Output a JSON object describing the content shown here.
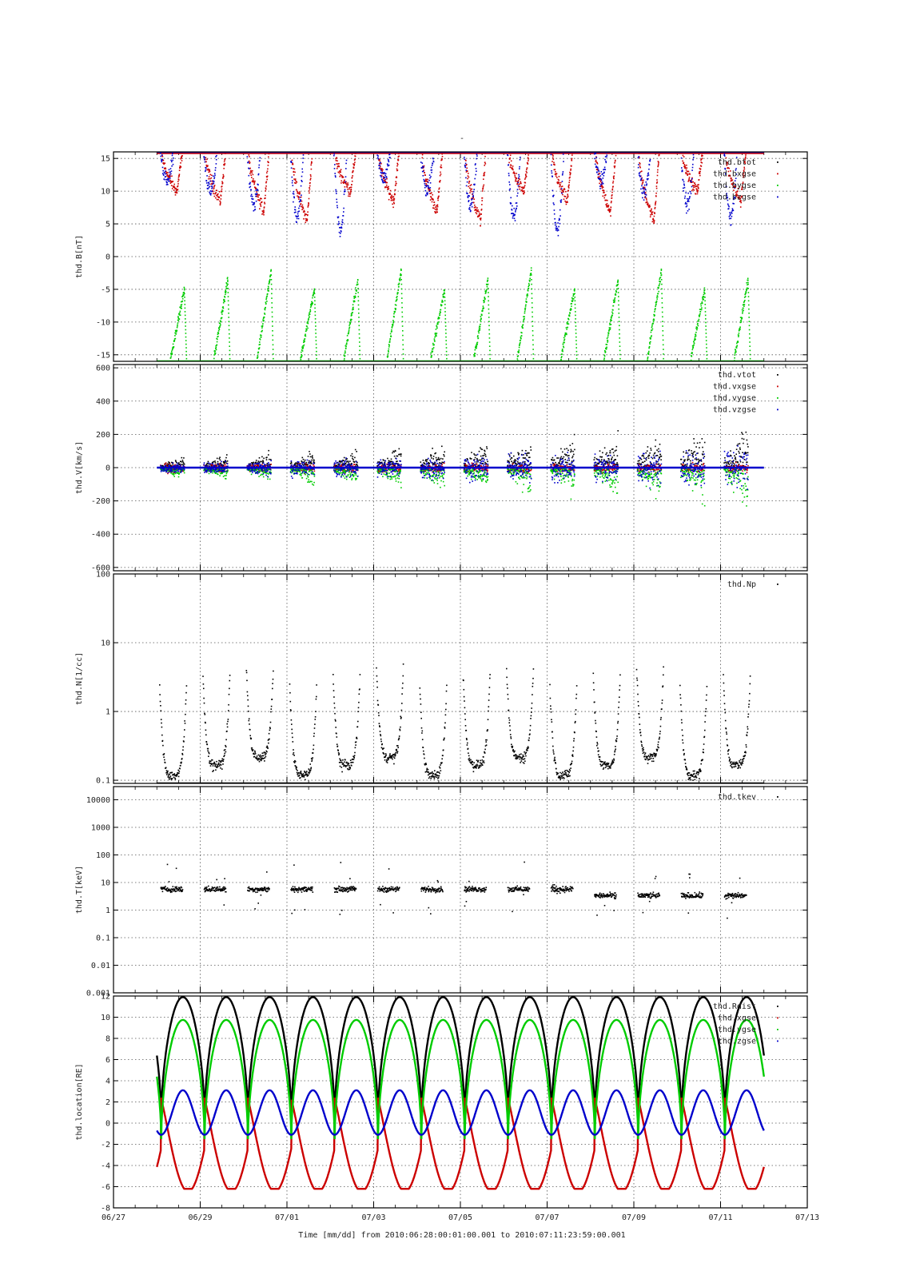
{
  "figure": {
    "title": "-",
    "time_range_label": "Time [mm/dd]  from 2010:06:28:00:01:00.001  to  2010:07:11:23:59:00.001"
  },
  "x_axis": {
    "ticks": [
      "06/27",
      "06/29",
      "07/01",
      "07/03",
      "07/05",
      "07/07",
      "07/09",
      "07/11",
      "07/13"
    ],
    "range_days": [
      0,
      16
    ],
    "data_start_day": 1.0,
    "data_end_day": 15.0,
    "grid": true
  },
  "chart_data": [
    {
      "type": "scatter",
      "ylabel": "thd.B[nT]",
      "scale": "linear",
      "ylim": [
        -16,
        16
      ],
      "yticks": [
        15,
        10,
        5,
        0,
        -5,
        -10,
        -15
      ],
      "yticklabels": [
        "15",
        "10",
        "5",
        "0",
        "-5",
        "-10",
        "-15"
      ],
      "grid": true,
      "legend_position": "top-right",
      "series": [
        {
          "name": "thd.btot",
          "color": "#000000"
        },
        {
          "name": "thd.bxgse",
          "color": "#cc0000"
        },
        {
          "name": "thd.bygse",
          "color": "#00cc00"
        },
        {
          "name": "thd.bzgse",
          "color": "#0000cc"
        }
      ]
    },
    {
      "type": "scatter",
      "ylabel": "thd.V[km/s]",
      "scale": "linear",
      "ylim": [
        -620,
        620
      ],
      "yticks": [
        600,
        400,
        200,
        0,
        -200,
        -400,
        -600
      ],
      "yticklabels": [
        "600",
        "400",
        "200",
        "0",
        "-200",
        "-400",
        "-600"
      ],
      "grid": true,
      "legend_position": "top-right",
      "series": [
        {
          "name": "thd.vtot",
          "color": "#000000"
        },
        {
          "name": "thd.vxgse",
          "color": "#cc0000"
        },
        {
          "name": "thd.vygse",
          "color": "#00cc00"
        },
        {
          "name": "thd.vzgse",
          "color": "#0000cc"
        }
      ]
    },
    {
      "type": "scatter",
      "ylabel": "thd.N[1/cc]",
      "scale": "log",
      "ylim": [
        0.09,
        100
      ],
      "yticks": [
        100,
        10,
        1,
        0.1
      ],
      "yticklabels": [
        "100",
        "10",
        "1",
        "0.1"
      ],
      "grid": true,
      "legend_position": "top-right",
      "series": [
        {
          "name": "thd.Np",
          "color": "#000000"
        }
      ]
    },
    {
      "type": "scatter",
      "ylabel": "thd.T[keV]",
      "scale": "log",
      "ylim": [
        0.001,
        30000
      ],
      "yticks": [
        10000,
        1000,
        100,
        10,
        1,
        0.1,
        0.01,
        0.001
      ],
      "yticklabels": [
        "10000",
        "1000",
        "100",
        "10",
        "1",
        "0.1",
        "0.01",
        "0.001"
      ],
      "grid": true,
      "legend_position": "top-right",
      "series": [
        {
          "name": "thd.tkev",
          "color": "#000000"
        }
      ]
    },
    {
      "type": "line",
      "ylabel": "thd.location[RE]",
      "scale": "linear",
      "ylim": [
        -8,
        12
      ],
      "yticks": [
        12,
        10,
        8,
        6,
        4,
        2,
        0,
        -2,
        -4,
        -6,
        -8
      ],
      "yticklabels": [
        "12",
        "10",
        "8",
        "6",
        "4",
        "2",
        "0",
        "-2",
        "-4",
        "-6",
        "-8"
      ],
      "grid": true,
      "legend_position": "top-right",
      "orbit_period_days": 1.0,
      "series": [
        {
          "name": "thd.Rdist",
          "color": "#000000"
        },
        {
          "name": "thd.xgse",
          "color": "#cc0000"
        },
        {
          "name": "thd.ygse",
          "color": "#00cc00"
        },
        {
          "name": "thd.zgse",
          "color": "#0000cc"
        }
      ]
    }
  ]
}
